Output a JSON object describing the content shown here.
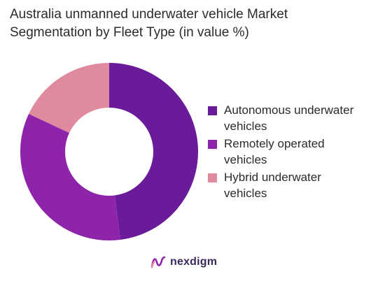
{
  "chart_data": {
    "type": "pie",
    "variant": "donut",
    "title": "Australia unmanned underwater vehicle Market Segmentation by Fleet Type (in value %)",
    "title_lines": [
      "Australia unmanned underwater vehicle Market",
      "Segmentation by Fleet Type (in value %)"
    ],
    "categories": [
      "Autonomous underwater vehicles",
      "Remotely operated vehicles",
      "Hybrid underwater vehicles"
    ],
    "legend_lines": [
      [
        "Autonomous underwater",
        "vehicles"
      ],
      [
        "Remotely operated",
        "vehicles"
      ],
      [
        "Hybrid underwater",
        "vehicles"
      ]
    ],
    "values": [
      48,
      34,
      18
    ],
    "colors": [
      "#6a1b9a",
      "#8e24aa",
      "#e08aa0"
    ],
    "legend_position": "right"
  },
  "brand": {
    "name": "nexdigm",
    "icon": "nexdigm-logo-icon",
    "color": "#3a2a5c"
  }
}
